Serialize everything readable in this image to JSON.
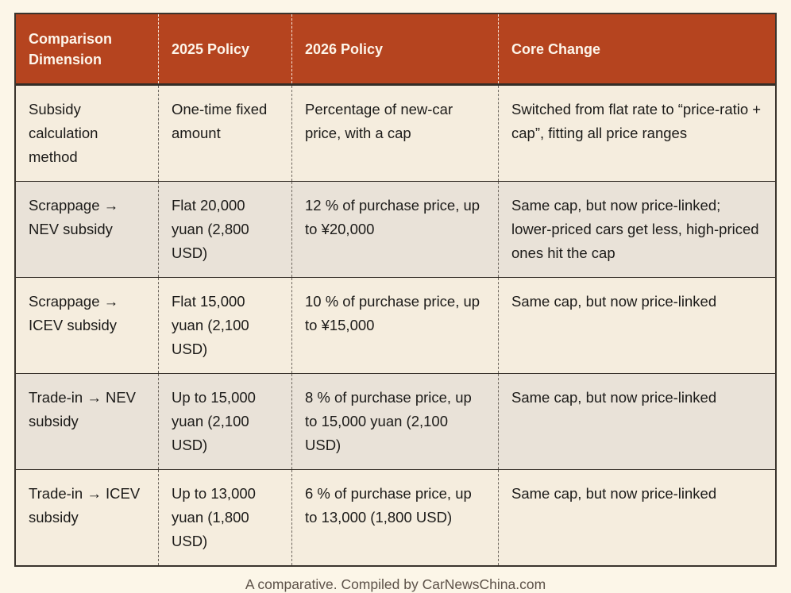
{
  "page": {
    "caption": "A comparative. Compiled by CarNewsChina.com"
  },
  "colors": {
    "page_background": "#fcf6e8",
    "header_background": "#b5441f",
    "header_text": "#fdf5ea",
    "row_cream": "#f5edde",
    "row_gray": "#e9e2d8",
    "body_text": "#1c1b19",
    "border": "#3a342d",
    "caption_text": "#5d5249"
  },
  "table": {
    "headers": [
      "Comparison Dimension",
      "2025 Policy",
      "2026 Policy",
      "Core Change"
    ],
    "rows": [
      {
        "cells": [
          "Subsidy calculation method",
          "One-time fixed amount",
          "Percentage of new-car price, with a cap",
          "Switched from flat rate to “price-ratio + cap”, fitting all price ranges"
        ]
      },
      {
        "cells": [
          "Scrappage → NEV subsidy",
          "Flat 20,000 yuan (2,800 USD)",
          "12 % of purchase price, up to ¥20,000",
          "Same cap, but now price-linked; lower-priced cars get less, high-priced ones hit the cap"
        ]
      },
      {
        "cells": [
          "Scrappage → ICEV subsidy",
          "Flat 15,000 yuan (2,100 USD)",
          "10 % of purchase price, up to ¥15,000",
          "Same cap, but now price-linked"
        ]
      },
      {
        "cells": [
          "Trade-in → NEV subsidy",
          "Up to 15,000 yuan (2,100 USD)",
          "8 % of purchase price, up to 15,000 yuan (2,100 USD)",
          "Same cap, but now price-linked"
        ]
      },
      {
        "cells": [
          "Trade-in → ICEV subsidy",
          "Up to 13,000 yuan (1,800 USD)",
          "6 % of purchase price, up to 13,000 (1,800 USD)",
          "Same cap, but now price-linked"
        ]
      }
    ]
  },
  "chart_data": {
    "type": "table",
    "title": "",
    "caption": "A comparative. Compiled by CarNewsChina.com",
    "columns": [
      "Comparison Dimension",
      "2025 Policy",
      "2026 Policy",
      "Core Change"
    ],
    "rows": [
      [
        "Subsidy calculation method",
        "One-time fixed amount",
        "Percentage of new-car price, with a cap",
        "Switched from flat rate to “price-ratio + cap”, fitting all price ranges"
      ],
      [
        "Scrappage → NEV subsidy",
        "Flat 20,000 yuan (2,800 USD)",
        "12 % of purchase price, up to ¥20,000",
        "Same cap, but now price-linked; lower-priced cars get less, high-priced ones hit the cap"
      ],
      [
        "Scrappage → ICEV subsidy",
        "Flat 15,000 yuan (2,100 USD)",
        "10 % of purchase price, up to ¥15,000",
        "Same cap, but now price-linked"
      ],
      [
        "Trade-in → NEV subsidy",
        "Up to 15,000 yuan (2,100 USD)",
        "8 % of purchase price, up to 15,000 yuan (2,100 USD)",
        "Same cap, but now price-linked"
      ],
      [
        "Trade-in → ICEV subsidy",
        "Up to 13,000 yuan (1,800 USD)",
        "6 % of purchase price, up to 13,000 (1,800 USD)",
        "Same cap, but now price-linked"
      ]
    ]
  }
}
